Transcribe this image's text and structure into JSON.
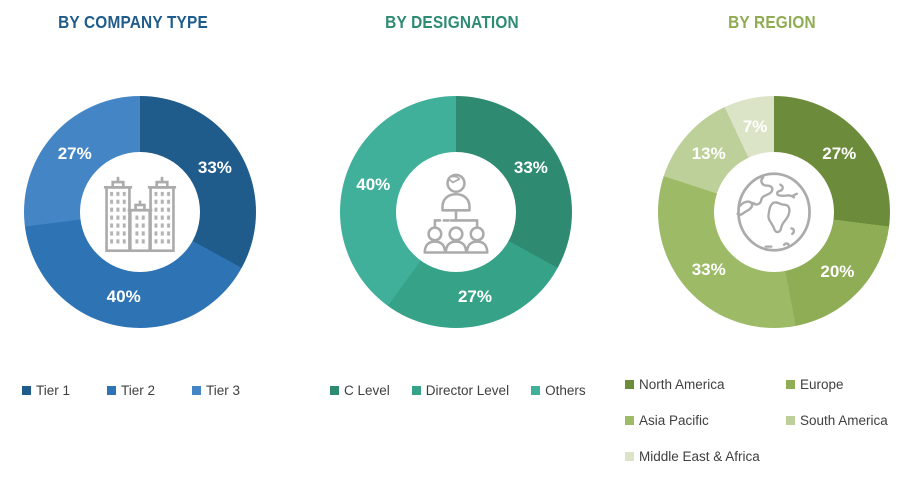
{
  "page": {
    "background": "#FFFFFF"
  },
  "slice_label_color": "#FFFFFF",
  "legend_text_color": "#3F3F3F",
  "icon_color": "#ABABAB",
  "chart_data": [
    {
      "type": "pie",
      "variant": "donut",
      "title": "BY COMPANY TYPE",
      "title_color": "#1F5C8C",
      "center_icon": "buildings-icon",
      "legend_position": "bottom",
      "categories": [
        "Tier 1",
        "Tier 2",
        "Tier 3"
      ],
      "values": [
        33,
        40,
        27
      ],
      "unit": "%",
      "segments": [
        {
          "label": "Tier 1",
          "value": 33,
          "color": "#1F5C8B"
        },
        {
          "label": "Tier 2",
          "value": 40,
          "color": "#2E74B5"
        },
        {
          "label": "Tier 3",
          "value": 27,
          "color": "#4486C5"
        }
      ]
    },
    {
      "type": "pie",
      "variant": "donut",
      "title": "BY DESIGNATION",
      "title_color": "#2E8B74",
      "center_icon": "org-chart-icon",
      "legend_position": "bottom",
      "categories": [
        "C Level",
        "Director Level",
        "Others"
      ],
      "values": [
        33,
        27,
        40
      ],
      "unit": "%",
      "segments": [
        {
          "label": "C Level",
          "value": 33,
          "color": "#2E8B72"
        },
        {
          "label": "Director Level",
          "value": 27,
          "color": "#36A287"
        },
        {
          "label": "Others",
          "value": 40,
          "color": "#40B09A"
        }
      ]
    },
    {
      "type": "pie",
      "variant": "donut",
      "title": "BY REGION",
      "title_color": "#8FAC52",
      "center_icon": "globe-icon",
      "legend_position": "bottom",
      "categories": [
        "North America",
        "Europe",
        "Asia Pacific",
        "South America",
        "Middle East & Africa"
      ],
      "values": [
        27,
        20,
        33,
        13,
        7
      ],
      "unit": "%",
      "segments": [
        {
          "label": "North America",
          "value": 27,
          "color": "#6D8C3B"
        },
        {
          "label": "Europe",
          "value": 20,
          "color": "#8FAD55"
        },
        {
          "label": "Asia Pacific",
          "value": 33,
          "color": "#9DBB67"
        },
        {
          "label": "South America",
          "value": 13,
          "color": "#BED099"
        },
        {
          "label": "Middle East & Africa",
          "value": 7,
          "color": "#DBE4C7"
        }
      ]
    }
  ]
}
